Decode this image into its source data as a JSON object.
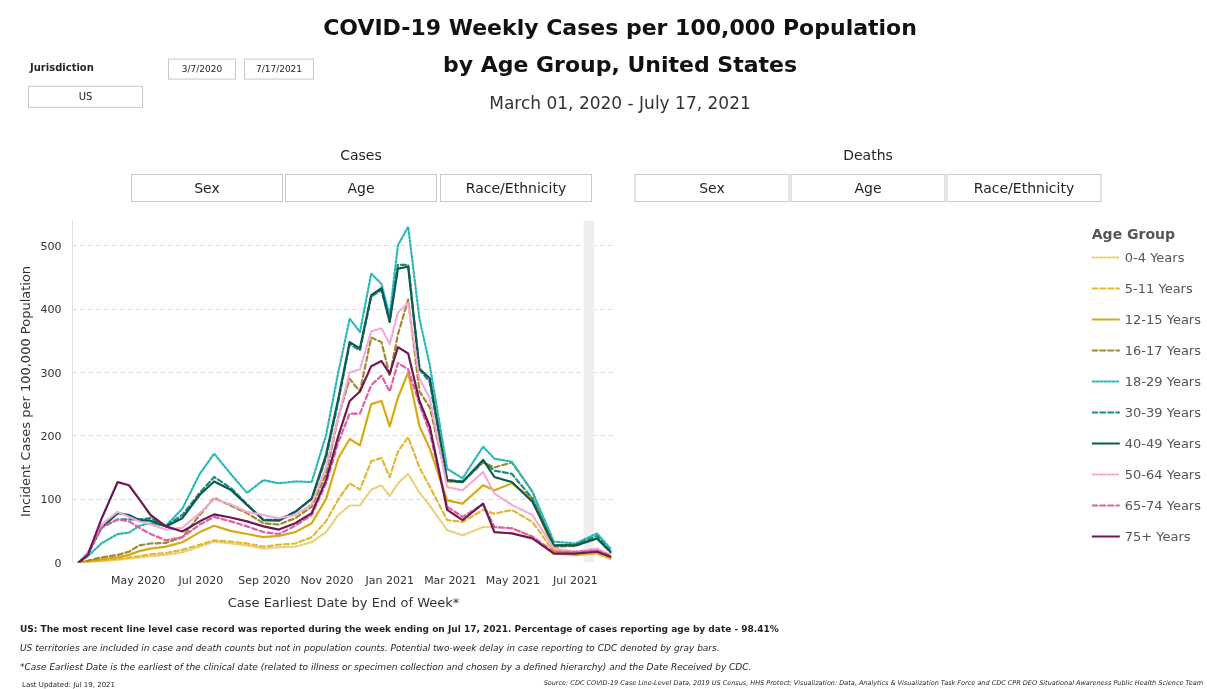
{
  "chart_data": {
    "type": "line",
    "title": "COVID-19 Weekly Cases per 100,000 Population\nby Age Group, United States",
    "subtitle": "March 01, 2020 - July 17, 2021",
    "xlabel": "Case Earliest Date by End of Week*",
    "ylabel": "Incident Cases per 100,000 Population",
    "legend_title": "Age Group",
    "legend": "right",
    "grid": "y",
    "x": [
      "2020-03-04",
      "2020-03-13",
      "2020-03-26",
      "2020-04-11",
      "2020-04-22",
      "2020-05-02",
      "2020-05-13",
      "2020-05-28",
      "2020-06-13",
      "2020-06-30",
      "2020-07-14",
      "2020-07-30",
      "2020-08-15",
      "2020-08-31",
      "2020-09-15",
      "2020-10-01",
      "2020-10-17",
      "2020-10-31",
      "2020-11-12",
      "2020-11-23",
      "2020-12-03",
      "2020-12-14",
      "2020-12-24",
      "2021-01-01",
      "2021-01-09",
      "2021-01-19",
      "2021-01-30",
      "2021-02-09",
      "2021-02-26",
      "2021-03-13",
      "2021-04-02",
      "2021-04-13",
      "2021-04-30",
      "2021-05-20",
      "2021-06-10",
      "2021-07-01",
      "2021-07-22",
      "2021-08-04"
    ],
    "series": [
      {
        "name": "0-4 Years",
        "color": "#ead07a",
        "line_style": "dotted",
        "values": [
          0,
          1,
          2,
          4,
          6,
          8,
          10,
          12,
          16,
          25,
          33,
          30,
          27,
          22,
          24,
          25,
          32,
          48,
          75,
          90,
          90,
          115,
          122,
          105,
          125,
          140,
          110,
          90,
          51,
          43,
          56,
          56,
          54,
          41,
          14,
          11,
          14,
          6
        ]
      },
      {
        "name": "5-11 Years",
        "color": "#e3b830",
        "line_style": "dashed",
        "values": [
          0,
          1,
          3,
          6,
          8,
          10,
          13,
          15,
          20,
          28,
          35,
          33,
          30,
          25,
          28,
          30,
          40,
          65,
          100,
          125,
          115,
          160,
          165,
          135,
          175,
          198,
          150,
          120,
          67,
          64,
          83,
          77,
          83,
          64,
          17,
          12,
          14,
          6
        ]
      },
      {
        "name": "12-15 Years",
        "color": "#d6aa14",
        "line_style": "solid",
        "values": [
          0,
          2,
          5,
          8,
          12,
          18,
          22,
          25,
          32,
          48,
          58,
          50,
          45,
          40,
          42,
          48,
          62,
          100,
          165,
          195,
          185,
          250,
          255,
          215,
          260,
          300,
          215,
          180,
          98,
          93,
          122,
          114,
          125,
          101,
          19,
          14,
          19,
          9
        ]
      },
      {
        "name": "16-17 Years",
        "color": "#a28a2c",
        "line_style": "dashed",
        "values": [
          0,
          3,
          8,
          12,
          17,
          27,
          30,
          31,
          40,
          75,
          102,
          90,
          78,
          62,
          60,
          70,
          88,
          140,
          230,
          290,
          270,
          355,
          348,
          295,
          360,
          415,
          270,
          245,
          128,
          127,
          158,
          150,
          158,
          112,
          25,
          26,
          38,
          16
        ]
      },
      {
        "name": "18-29 Years",
        "color": "#2db8b8",
        "line_style": "dotted",
        "values": [
          0,
          10,
          30,
          45,
          47,
          58,
          62,
          58,
          85,
          140,
          172,
          140,
          110,
          130,
          125,
          128,
          127,
          201,
          301,
          385,
          364,
          456,
          440,
          390,
          501,
          530,
          385,
          312,
          148,
          133,
          183,
          164,
          159,
          112,
          33,
          30,
          46,
          22
        ]
      },
      {
        "name": "30-39 Years",
        "color": "#1b8c82",
        "line_style": "dashed",
        "values": [
          0,
          15,
          55,
          68,
          68,
          68,
          70,
          58,
          75,
          110,
          135,
          118,
          92,
          67,
          68,
          80,
          100,
          165,
          255,
          345,
          335,
          420,
          430,
          380,
          470,
          470,
          305,
          285,
          130,
          128,
          160,
          145,
          140,
          101,
          27,
          28,
          42,
          18
        ]
      },
      {
        "name": "40-49 Years",
        "color": "#0e5a50",
        "line_style": "solid",
        "values": [
          0,
          15,
          54,
          78,
          75,
          67,
          66,
          57,
          70,
          107,
          128,
          115,
          91,
          67,
          66,
          80,
          101,
          170,
          259,
          348,
          338,
          422,
          433,
          380,
          464,
          467,
          306,
          291,
          130,
          127,
          162,
          135,
          127,
          96,
          27,
          27,
          38,
          17
        ]
      },
      {
        "name": "50-64 Years",
        "color": "#f4a8d8",
        "line_style": "dotted",
        "values": [
          0,
          15,
          60,
          80,
          72,
          65,
          60,
          52,
          55,
          78,
          100,
          92,
          80,
          75,
          70,
          75,
          92,
          150,
          230,
          300,
          305,
          365,
          370,
          345,
          395,
          410,
          290,
          260,
          119,
          114,
          143,
          109,
          91,
          75,
          22,
          17,
          22,
          12
        ]
      },
      {
        "name": "65-74 Years",
        "color": "#e05fa8",
        "line_style": "dashed",
        "values": [
          0,
          12,
          55,
          68,
          65,
          55,
          45,
          35,
          40,
          60,
          72,
          65,
          57,
          48,
          45,
          58,
          75,
          125,
          190,
          235,
          235,
          280,
          295,
          270,
          315,
          305,
          250,
          205,
          88,
          72,
          92,
          56,
          54,
          41,
          17,
          17,
          19,
          11
        ]
      },
      {
        "name": "75+ Years",
        "color": "#6b1a52",
        "line_style": "solid",
        "values": [
          0,
          12,
          68,
          127,
          122,
          100,
          75,
          57,
          49,
          65,
          76,
          71,
          65,
          57,
          52,
          62,
          78,
          130,
          200,
          255,
          270,
          310,
          318,
          298,
          340,
          330,
          255,
          215,
          83,
          67,
          93,
          48,
          46,
          38,
          14,
          14,
          17,
          9
        ]
      }
    ],
    "xlim": [
      "2020-02-27",
      "2021-08-08"
    ],
    "xticks": [
      {
        "value": "2020-05-01",
        "label": "May 2020"
      },
      {
        "value": "2020-07-01",
        "label": "Jul 2020"
      },
      {
        "value": "2020-09-01",
        "label": "Sep 2020"
      },
      {
        "value": "2020-11-01",
        "label": "Nov 2020"
      },
      {
        "value": "2021-01-01",
        "label": "Jan 2021"
      },
      {
        "value": "2021-03-01",
        "label": "Mar 2021"
      },
      {
        "value": "2021-05-01",
        "label": "May 2021"
      },
      {
        "value": "2021-07-01",
        "label": "Jul 2021"
      }
    ],
    "ylim": [
      0,
      540
    ],
    "yticks": [
      0,
      100,
      200,
      300,
      400,
      500
    ],
    "bands": [
      {
        "axis": "x",
        "from": "2021-07-09",
        "to": "2021-07-19",
        "label": null,
        "color": "#eeeeee"
      }
    ],
    "annotations": [
      "Jurisdiction",
      "US",
      "3/7/2020",
      "7/17/2021",
      "Cases",
      "Sex",
      "Age",
      "Race/Ethnicity",
      "Deaths",
      "Sex",
      "Age",
      "Race/Ethnicity",
      "US: The most recent line level case record was reported during the week ending on Jul 17, 2021. Percentage of cases reporting age by date - 98.41%",
      "US territories are included in case and death counts but not in population counts. Potential two-week delay in case reporting to CDC denoted by gray bars.",
      "*Case Earliest Date is the earliest of the clinical date (related to illness or specimen collection and chosen by a defined hierarchy) and the Date Received by CDC.",
      "Last Updated: Jul 19, 2021",
      "Source: CDC COVID-19 Case Line-Level Data, 2019 US Census, HHS Protect; Visualization: Data, Analytics & Visualization Task Force and CDC CPR DEO Situational Awareness Public Health Science Team"
    ]
  }
}
